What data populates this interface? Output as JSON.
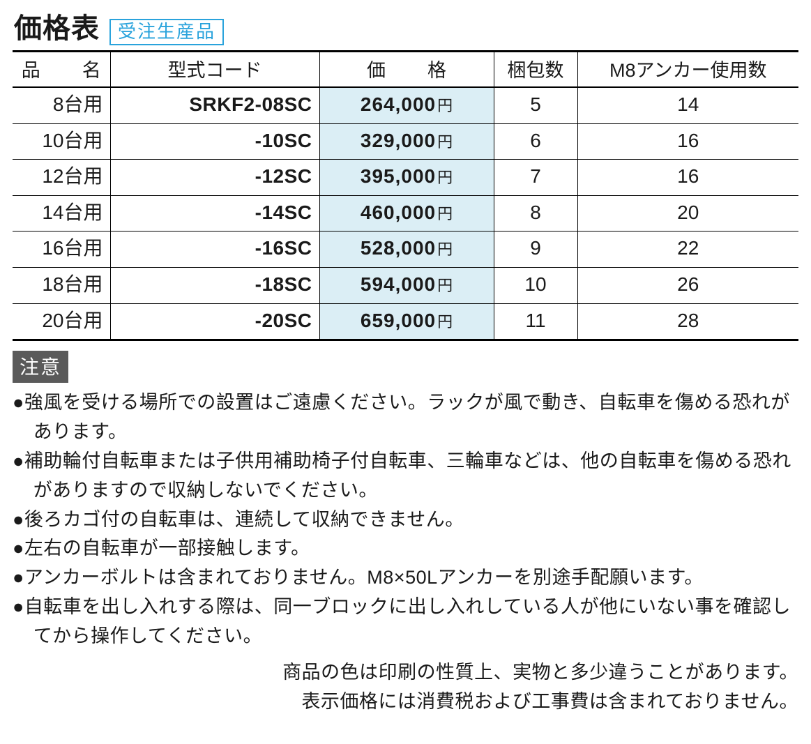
{
  "colors": {
    "badge_border": "#2aa3dc",
    "badge_text": "#2aa3dc",
    "price_bg": "#dbeef5",
    "caution_bg": "#5a5a5a",
    "text": "#1a1a1a"
  },
  "header": {
    "title": "価格表",
    "badge": "受注生産品"
  },
  "table": {
    "columns": {
      "name": "品名",
      "model": "型式コード",
      "price": "価格",
      "qty": "梱包数",
      "anchor": "M8アンカー使用数"
    },
    "currency_suffix": "円",
    "rows": [
      {
        "name": "8台用",
        "model": "SRKF2-08SC",
        "price": "264,000",
        "qty": "5",
        "anchor": "14"
      },
      {
        "name": "10台用",
        "model": "-10SC",
        "price": "329,000",
        "qty": "6",
        "anchor": "16"
      },
      {
        "name": "12台用",
        "model": "-12SC",
        "price": "395,000",
        "qty": "7",
        "anchor": "16"
      },
      {
        "name": "14台用",
        "model": "-14SC",
        "price": "460,000",
        "qty": "8",
        "anchor": "20"
      },
      {
        "name": "16台用",
        "model": "-16SC",
        "price": "528,000",
        "qty": "9",
        "anchor": "22"
      },
      {
        "name": "18台用",
        "model": "-18SC",
        "price": "594,000",
        "qty": "10",
        "anchor": "26"
      },
      {
        "name": "20台用",
        "model": "-20SC",
        "price": "659,000",
        "qty": "11",
        "anchor": "28"
      }
    ]
  },
  "caution": {
    "label": "注意",
    "items": [
      "強風を受ける場所での設置はご遠慮ください。ラックが風で動き、自転車を傷める恐れがあります。",
      "補助輪付自転車または子供用補助椅子付自転車、三輪車などは、他の自転車を傷める恐れがありますので収納しないでください。",
      "後ろカゴ付の自転車は、連続して収納できません。",
      "左右の自転車が一部接触します。",
      "アンカーボルトは含まれておりません。M8×50Lアンカーを別途手配願います。",
      "自転車を出し入れする際は、同一ブロックに出し入れしている人が他にいない事を確認してから操作してください。"
    ]
  },
  "footer": [
    "商品の色は印刷の性質上、実物と多少違うことがあります。",
    "表示価格には消費税および工事費は含まれておりません。"
  ]
}
